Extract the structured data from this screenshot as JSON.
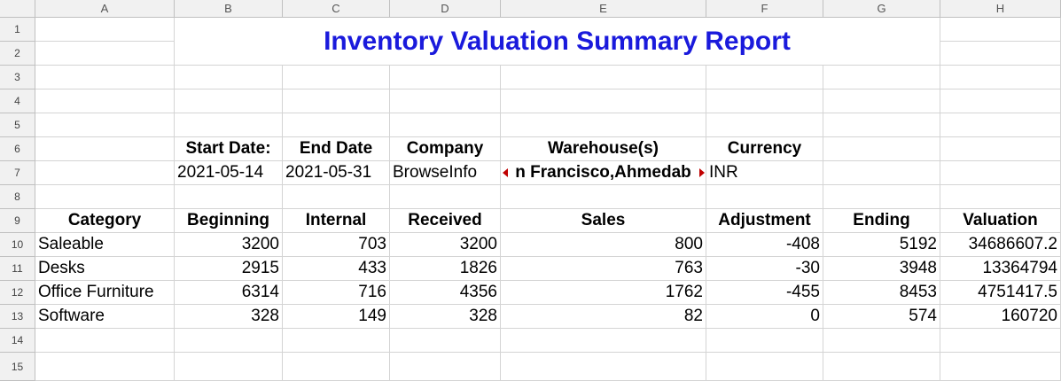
{
  "columns": [
    "A",
    "B",
    "C",
    "D",
    "E",
    "F",
    "G",
    "H"
  ],
  "rows": [
    "1",
    "2",
    "3",
    "4",
    "5",
    "6",
    "7",
    "8",
    "9",
    "10",
    "11",
    "12",
    "13",
    "14",
    "15"
  ],
  "title": "Inventory Valuation Summary Report",
  "meta_headers": [
    "Start Date:",
    "End Date",
    "Company",
    "Warehouse(s)",
    "Currency"
  ],
  "meta_values": [
    "2021-05-14",
    "2021-05-31",
    "BrowseInfo",
    "n Francisco,Ahmedab",
    "INR"
  ],
  "table_headers": [
    "Category",
    "Beginning",
    "Internal",
    "Received",
    "Sales",
    "Adjustment",
    "Ending",
    "Valuation"
  ],
  "table_rows": [
    [
      "Saleable",
      "3200",
      "703",
      "3200",
      "800",
      "-408",
      "5192",
      "34686607.2"
    ],
    [
      "Desks",
      "2915",
      "433",
      "1826",
      "763",
      "-30",
      "3948",
      "13364794"
    ],
    [
      "Office Furniture",
      "6314",
      "716",
      "4356",
      "1762",
      "-455",
      "8453",
      "4751417.5"
    ],
    [
      "Software",
      "328",
      "149",
      "328",
      "82",
      "0",
      "574",
      "160720"
    ]
  ],
  "colors": {
    "title": "#1a1adc",
    "overflow_marker": "#c00000"
  }
}
